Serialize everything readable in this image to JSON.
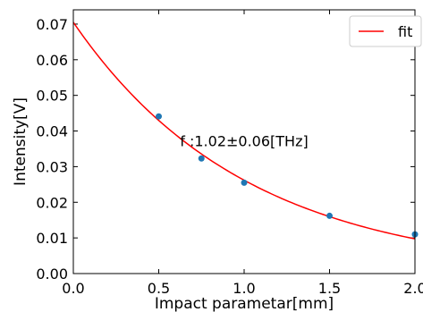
{
  "chart_data": {
    "type": "scatter",
    "xlabel": "Impact parametar[mm]",
    "ylabel": "Intensity[V]",
    "xlim": [
      0.0,
      2.0
    ],
    "ylim": [
      0.0,
      0.074
    ],
    "xticks": [
      0.0,
      0.5,
      1.0,
      1.5,
      2.0
    ],
    "xtick_labels": [
      "0.0",
      "0.5",
      "1.0",
      "1.5",
      "2.0"
    ],
    "yticks": [
      0.0,
      0.01,
      0.02,
      0.03,
      0.04,
      0.05,
      0.06,
      0.07
    ],
    "ytick_labels": [
      "0.00",
      "0.01",
      "0.02",
      "0.03",
      "0.04",
      "0.05",
      "0.06",
      "0.07"
    ],
    "grid": false,
    "legend_position": "top-right",
    "series": [
      {
        "kind": "scatter",
        "color": "#1f77b4",
        "x": [
          0.5,
          0.75,
          1.0,
          1.5,
          2.0
        ],
        "y": [
          0.0441,
          0.0323,
          0.0255,
          0.0162,
          0.011
        ]
      },
      {
        "kind": "line",
        "name": "fit",
        "color": "#ff0000",
        "model": "exponential",
        "amplitude": 0.0705,
        "decay": 0.99
      }
    ],
    "annotations": [
      {
        "text": "f :1.02±0.06[THz]",
        "x": 1.0,
        "y": 0.0358
      }
    ]
  }
}
